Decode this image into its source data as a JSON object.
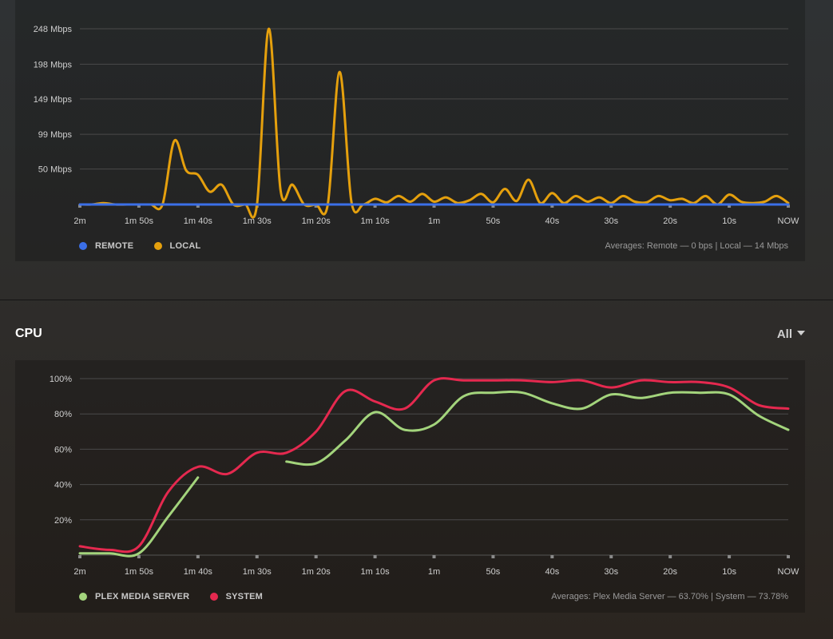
{
  "bandwidth": {
    "legend": [
      {
        "label": "REMOTE",
        "color": "#3b6fe8"
      },
      {
        "label": "LOCAL",
        "color": "#e5a00d"
      }
    ],
    "averages": "Averages: Remote — 0 bps | Local — 14 Mbps"
  },
  "cpu": {
    "title": "CPU",
    "filter": "All",
    "legend": [
      {
        "label": "PLEX MEDIA SERVER",
        "color": "#a3d47c"
      },
      {
        "label": "SYSTEM",
        "color": "#e5294f"
      }
    ],
    "averages": "Averages: Plex Media Server — 63.70% | System — 73.78%"
  },
  "chart_data": [
    {
      "type": "line",
      "x_ticks": [
        "2m",
        "1m 50s",
        "1m 40s",
        "1m 30s",
        "1m 20s",
        "1m 10s",
        "1m",
        "50s",
        "40s",
        "30s",
        "20s",
        "10s",
        "NOW"
      ],
      "y_ticks": [
        {
          "label": "50 Mbps",
          "value": 50
        },
        {
          "label": "99 Mbps",
          "value": 99
        },
        {
          "label": "149 Mbps",
          "value": 149
        },
        {
          "label": "198 Mbps",
          "value": 198
        },
        {
          "label": "248 Mbps",
          "value": 248
        }
      ],
      "ylim": [
        0,
        248
      ],
      "x": [
        120,
        118,
        116,
        114,
        112,
        110,
        108,
        106,
        104,
        102,
        100,
        98,
        96,
        94,
        92,
        90,
        88,
        86,
        84,
        82,
        80,
        78,
        76,
        74,
        72,
        70,
        68,
        66,
        64,
        62,
        60,
        58,
        56,
        54,
        52,
        50,
        48,
        46,
        44,
        42,
        40,
        38,
        36,
        34,
        32,
        30,
        28,
        26,
        24,
        22,
        20,
        18,
        16,
        14,
        12,
        10,
        8,
        6,
        4,
        2,
        0
      ],
      "series": [
        {
          "name": "REMOTE",
          "values": [
            0,
            0,
            0,
            0,
            0,
            0,
            0,
            0,
            0,
            0,
            0,
            0,
            0,
            0,
            0,
            0,
            0,
            0,
            0,
            0,
            0,
            0,
            0,
            0,
            0,
            0,
            0,
            0,
            0,
            0,
            0,
            0,
            0,
            0,
            0,
            0,
            0,
            0,
            0,
            0,
            0,
            0,
            0,
            0,
            0,
            0,
            0,
            0,
            0,
            0,
            0,
            0,
            0,
            0,
            0,
            0,
            0,
            0,
            0,
            0,
            0
          ]
        },
        {
          "name": "LOCAL",
          "values": [
            0,
            0,
            2,
            0,
            0,
            0,
            0,
            0,
            90,
            48,
            42,
            18,
            28,
            0,
            0,
            0,
            248,
            20,
            28,
            0,
            0,
            0,
            187,
            4,
            0,
            8,
            3,
            12,
            4,
            15,
            4,
            10,
            2,
            6,
            15,
            3,
            22,
            5,
            35,
            2,
            16,
            2,
            12,
            4,
            10,
            2,
            12,
            4,
            3,
            12,
            6,
            8,
            2,
            12,
            0,
            14,
            4,
            2,
            4,
            12,
            2
          ]
        }
      ]
    },
    {
      "type": "line",
      "x_ticks": [
        "2m",
        "1m 50s",
        "1m 40s",
        "1m 30s",
        "1m 20s",
        "1m 10s",
        "1m",
        "50s",
        "40s",
        "30s",
        "20s",
        "10s",
        "NOW"
      ],
      "y_ticks": [
        {
          "label": "20%",
          "value": 20
        },
        {
          "label": "40%",
          "value": 40
        },
        {
          "label": "60%",
          "value": 60
        },
        {
          "label": "80%",
          "value": 80
        },
        {
          "label": "100%",
          "value": 100
        }
      ],
      "ylim": [
        0,
        100
      ],
      "x": [
        120,
        115,
        110,
        105,
        100,
        95,
        90,
        85,
        80,
        75,
        70,
        65,
        60,
        55,
        50,
        45,
        40,
        35,
        30,
        25,
        20,
        15,
        10,
        5,
        0
      ],
      "series": [
        {
          "name": "PLEX MEDIA SERVER",
          "values": [
            1,
            1,
            1,
            22,
            44,
            null,
            null,
            53,
            52,
            65,
            81,
            71,
            74,
            90,
            92,
            92,
            86,
            83,
            91,
            89,
            92,
            92,
            91,
            79,
            71
          ]
        },
        {
          "name": "SYSTEM",
          "values": [
            5,
            3,
            5,
            36,
            50,
            46,
            58,
            58,
            70,
            93,
            87,
            83,
            99,
            99,
            99,
            99,
            98,
            99,
            95,
            99,
            98,
            98,
            95,
            85,
            83
          ]
        }
      ]
    }
  ]
}
